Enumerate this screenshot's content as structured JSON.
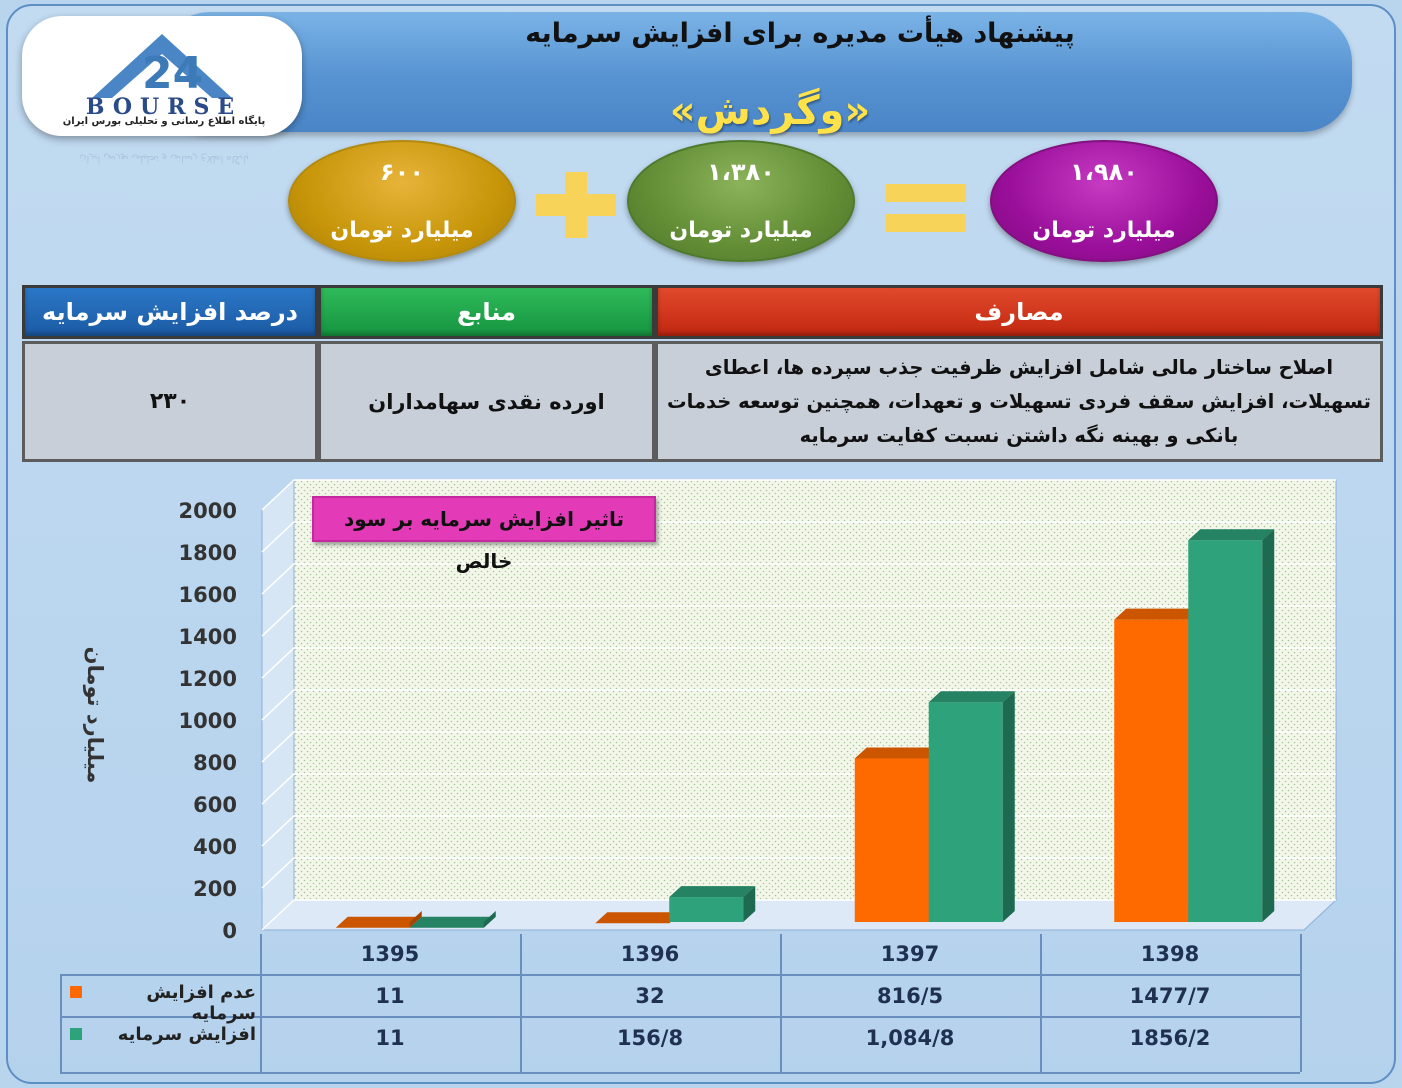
{
  "header": {
    "title": "پیشنهاد هیأت مدیره برای افزایش سرمایه",
    "company": "«وگردش»"
  },
  "logo": {
    "mark": "24",
    "word": "BOURSE",
    "caption": "پایگاه اطلاع رسانی و تحلیلی بورس ایران"
  },
  "equation": {
    "part1": {
      "amount": "۶۰۰",
      "unit": "میلیارد تومان"
    },
    "part2": {
      "amount": "۱،۳۸۰",
      "unit": "میلیارد تومان"
    },
    "result": {
      "amount": "۱،۹۸۰",
      "unit": "میلیارد تومان"
    },
    "colors": {
      "part1": "#c89609",
      "part2": "#628d35",
      "result": "#9a0f9a",
      "operators": "#f7d35a"
    }
  },
  "info_table": {
    "headers": {
      "costs": "مصارف",
      "sources": "منابع",
      "percent": "درصد افزایش سرمایه"
    },
    "values": {
      "costs": "اصلاح ساختار مالی شامل افزایش ظرفیت جذب سپرده ها، اعطای تسهیلات، افزایش سقف فردی تسهیلات و تعهدات، همچنین توسعه خدمات بانکی و بهینه نگه داشتن نسبت کفایت سرمایه",
      "sources": "اورده نقدی سهامداران",
      "percent": "۲۳۰"
    }
  },
  "chart_data": {
    "type": "bar",
    "title": "تاثیر افزایش سرمایه بر سود خالص",
    "ylabel": "میلیارد تومان",
    "ylim": [
      0,
      2000
    ],
    "yticks": [
      0,
      200,
      400,
      600,
      800,
      1000,
      1200,
      1400,
      1600,
      1800,
      2000
    ],
    "categories": [
      "1395",
      "1396",
      "1397",
      "1398"
    ],
    "series": [
      {
        "name": "عدم افزایش سرمایه",
        "color": "#ff6a00",
        "values": [
          11,
          32,
          816.5,
          1477.7
        ],
        "labels": [
          "11",
          "32",
          "816/5",
          "1477/7"
        ]
      },
      {
        "name": "افزایش سرمایه",
        "color": "#2ea37b",
        "values": [
          11,
          156.8,
          1084.8,
          1856.2
        ],
        "labels": [
          "11",
          "156/8",
          "1,084/8",
          "1856/2"
        ]
      }
    ],
    "grid": true,
    "legend": "data-table"
  }
}
